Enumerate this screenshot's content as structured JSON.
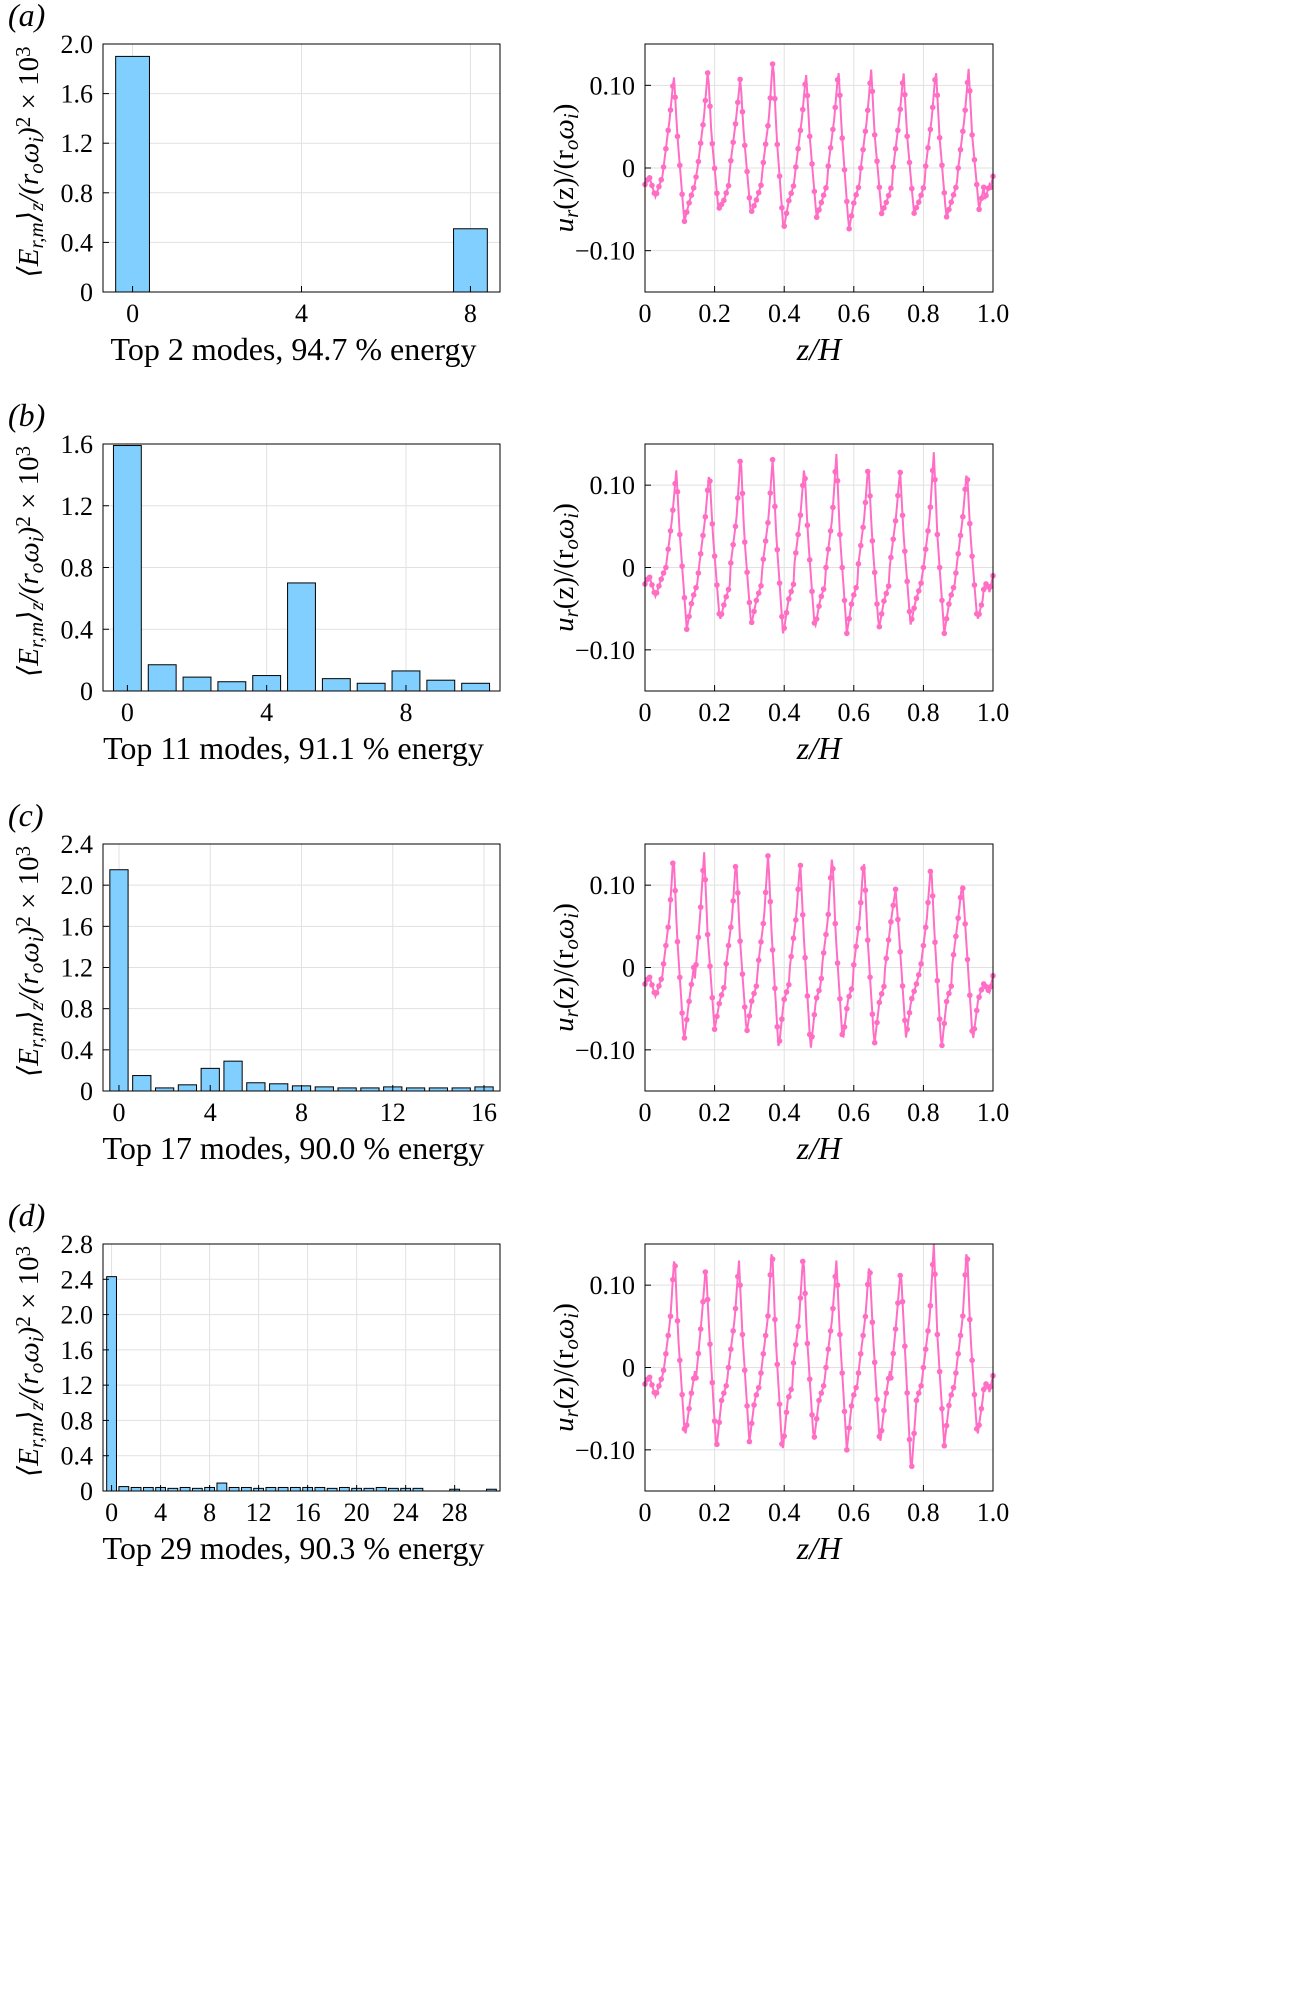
{
  "colors": {
    "bar": "#80cfff",
    "line": "#ff6ec4",
    "grid": "#e1e1e1",
    "axis": "#000000"
  },
  "chart_data": [
    {
      "type": "bar",
      "panel": "(a)",
      "xlabel": "Top 2 modes, 94.7 % energy",
      "ylabel": "⟨E_r,m⟩_z/(r_o ω_i)^2 × 10^3",
      "categories": [
        0,
        8
      ],
      "values": [
        1.9,
        0.51
      ],
      "xlim": [
        -0.7,
        8.7
      ],
      "ylim": [
        0,
        2.0
      ],
      "xticks": [
        0,
        4,
        8
      ],
      "yticks": [
        0,
        0.4,
        0.8,
        1.2,
        1.6,
        2.0
      ],
      "ytick_labels": [
        "0",
        "0.4",
        "0.8",
        "1.2",
        "1.6",
        "2.0"
      ],
      "grid": true
    },
    {
      "type": "line",
      "panel": "(a)",
      "xlabel": "z/H",
      "ylabel": "u_r(z)/(r_o ω_i)",
      "xlim": [
        0,
        1
      ],
      "ylim": [
        -0.15,
        0.15
      ],
      "xticks": [
        0,
        0.2,
        0.4,
        0.6,
        0.8,
        1.0
      ],
      "xtick_labels": [
        "0",
        "0.2",
        "0.4",
        "0.6",
        "0.8",
        "1.0"
      ],
      "yticks": [
        -0.1,
        0,
        0.1
      ],
      "ytick_labels": [
        "−0.10",
        "0",
        "0.10"
      ],
      "peaks": [
        0.083,
        0.181,
        0.274,
        0.368,
        0.463,
        0.556,
        0.65,
        0.743,
        0.836,
        0.93
      ],
      "peak_values": [
        0.112,
        0.12,
        0.11,
        0.134,
        0.115,
        0.12,
        0.119,
        0.117,
        0.12,
        0.12
      ],
      "trough_values": [
        -0.065,
        -0.05,
        -0.055,
        -0.075,
        -0.06,
        -0.075,
        -0.055,
        -0.055,
        -0.06,
        -0.05
      ],
      "grid": true
    },
    {
      "type": "bar",
      "panel": "(b)",
      "xlabel": "Top 11 modes, 91.1 % energy",
      "ylabel": "⟨E_r,m⟩_z/(r_o ω_i)^2 × 10^3",
      "categories": [
        0,
        1,
        2,
        3,
        4,
        5,
        6,
        7,
        8,
        9,
        10
      ],
      "values": [
        1.59,
        0.17,
        0.09,
        0.06,
        0.1,
        0.7,
        0.08,
        0.05,
        0.13,
        0.07,
        0.05
      ],
      "xlim": [
        -0.7,
        10.7
      ],
      "ylim": [
        0,
        1.6
      ],
      "xticks": [
        0,
        4,
        8
      ],
      "yticks": [
        0,
        0.4,
        0.8,
        1.2,
        1.6
      ],
      "ytick_labels": [
        "0",
        "0.4",
        "0.8",
        "1.2",
        "1.6"
      ],
      "grid": true
    },
    {
      "type": "line",
      "panel": "(b)",
      "xlabel": "z/H",
      "ylabel": "u_r(z)/(r_o ω_i)",
      "xlim": [
        0,
        1
      ],
      "ylim": [
        -0.15,
        0.15
      ],
      "xticks": [
        0,
        0.2,
        0.4,
        0.6,
        0.8,
        1.0
      ],
      "xtick_labels": [
        "0",
        "0.2",
        "0.4",
        "0.6",
        "0.8",
        "1.0"
      ],
      "yticks": [
        -0.1,
        0,
        0.1
      ],
      "ytick_labels": [
        "−0.10",
        "0",
        "0.10"
      ],
      "peaks": [
        0.09,
        0.185,
        0.275,
        0.367,
        0.458,
        0.55,
        0.642,
        0.733,
        0.83,
        0.925
      ],
      "peak_values": [
        0.118,
        0.118,
        0.14,
        0.133,
        0.125,
        0.138,
        0.128,
        0.118,
        0.14,
        0.12
      ],
      "trough_values": [
        -0.075,
        -0.065,
        -0.07,
        -0.082,
        -0.075,
        -0.08,
        -0.075,
        -0.07,
        -0.08,
        -0.065
      ],
      "grid": true
    },
    {
      "type": "bar",
      "panel": "(c)",
      "xlabel": "Top 17 modes, 90.0 % energy",
      "ylabel": "⟨E_r,m⟩_z/(r_o ω_i)^2 × 10^3",
      "categories": [
        0,
        1,
        2,
        3,
        4,
        5,
        6,
        7,
        8,
        9,
        10,
        11,
        12,
        13,
        14,
        15,
        16
      ],
      "values": [
        2.15,
        0.15,
        0.03,
        0.06,
        0.22,
        0.29,
        0.08,
        0.07,
        0.05,
        0.04,
        0.03,
        0.03,
        0.04,
        0.03,
        0.03,
        0.03,
        0.04
      ],
      "xlim": [
        -0.7,
        16.7
      ],
      "ylim": [
        0,
        2.4
      ],
      "xticks": [
        0,
        4,
        8,
        12,
        16
      ],
      "yticks": [
        0,
        0.4,
        0.8,
        1.2,
        1.6,
        2.0,
        2.4
      ],
      "ytick_labels": [
        "0",
        "0.4",
        "0.8",
        "1.2",
        "1.6",
        "2.0",
        "2.4"
      ],
      "grid": true
    },
    {
      "type": "line",
      "panel": "(c)",
      "xlabel": "z/H",
      "ylabel": "u_r(z)/(r_o ω_i)",
      "xlim": [
        0,
        1
      ],
      "ylim": [
        -0.15,
        0.15
      ],
      "xticks": [
        0,
        0.2,
        0.4,
        0.6,
        0.8,
        1.0
      ],
      "xtick_labels": [
        "0",
        "0.2",
        "0.4",
        "0.6",
        "0.8",
        "1.0"
      ],
      "yticks": [
        -0.1,
        0,
        0.1
      ],
      "ytick_labels": [
        "−0.10",
        "0",
        "0.10"
      ],
      "peaks": [
        0.082,
        0.17,
        0.262,
        0.354,
        0.446,
        0.538,
        0.629,
        0.72,
        0.822,
        0.912
      ],
      "peak_values": [
        0.14,
        0.14,
        0.135,
        0.14,
        0.13,
        0.14,
        0.135,
        0.095,
        0.128,
        0.105
      ],
      "trough_values": [
        -0.09,
        -0.075,
        -0.08,
        -0.1,
        -0.1,
        -0.09,
        -0.095,
        -0.085,
        -0.1,
        -0.09
      ],
      "grid": true
    },
    {
      "type": "bar",
      "panel": "(d)",
      "xlabel": "Top 29 modes, 90.3 % energy",
      "ylabel": "⟨E_r,m⟩_z/(r_o ω_i)^2 × 10^3",
      "categories": [
        0,
        1,
        2,
        3,
        4,
        5,
        6,
        7,
        8,
        9,
        10,
        11,
        12,
        13,
        14,
        15,
        16,
        17,
        18,
        19,
        20,
        21,
        22,
        23,
        24,
        25,
        26,
        27,
        28,
        29,
        30,
        31
      ],
      "values": [
        2.43,
        0.05,
        0.04,
        0.04,
        0.04,
        0.03,
        0.04,
        0.03,
        0.04,
        0.09,
        0.04,
        0.04,
        0.03,
        0.04,
        0.04,
        0.04,
        0.04,
        0.04,
        0.03,
        0.04,
        0.03,
        0.03,
        0.04,
        0.03,
        0.03,
        0.03,
        0.0,
        0.0,
        0.02,
        0.0,
        0.0,
        0.02
      ],
      "xlim": [
        -0.7,
        31.7
      ],
      "ylim": [
        0,
        2.8
      ],
      "xticks": [
        0,
        4,
        8,
        12,
        16,
        20,
        24,
        28
      ],
      "yticks": [
        0,
        0.4,
        0.8,
        1.2,
        1.6,
        2.0,
        2.4,
        2.8
      ],
      "ytick_labels": [
        "0",
        "0.4",
        "0.8",
        "1.2",
        "1.6",
        "2.0",
        "2.4",
        "2.8"
      ],
      "grid": true
    },
    {
      "type": "line",
      "panel": "(d)",
      "xlabel": "z/H",
      "ylabel": "u_r(z)/(r_o ω_i)",
      "xlim": [
        0,
        1
      ],
      "ylim": [
        -0.15,
        0.15
      ],
      "xticks": [
        0,
        0.2,
        0.4,
        0.6,
        0.8,
        1.0
      ],
      "xtick_labels": [
        "0",
        "0.2",
        "0.4",
        "0.6",
        "0.8",
        "1.0"
      ],
      "yticks": [
        -0.1,
        0,
        0.1
      ],
      "ytick_labels": [
        "−0.10",
        "0",
        "0.10"
      ],
      "peaks": [
        0.085,
        0.175,
        0.27,
        0.365,
        0.455,
        0.55,
        0.645,
        0.735,
        0.83,
        0.925
      ],
      "peak_values": [
        0.14,
        0.125,
        0.13,
        0.15,
        0.14,
        0.13,
        0.13,
        0.12,
        0.15,
        0.15
      ],
      "trough_values": [
        -0.085,
        -0.1,
        -0.09,
        -0.105,
        -0.09,
        -0.1,
        -0.095,
        -0.13,
        -0.095,
        -0.085
      ],
      "grid": true
    }
  ]
}
